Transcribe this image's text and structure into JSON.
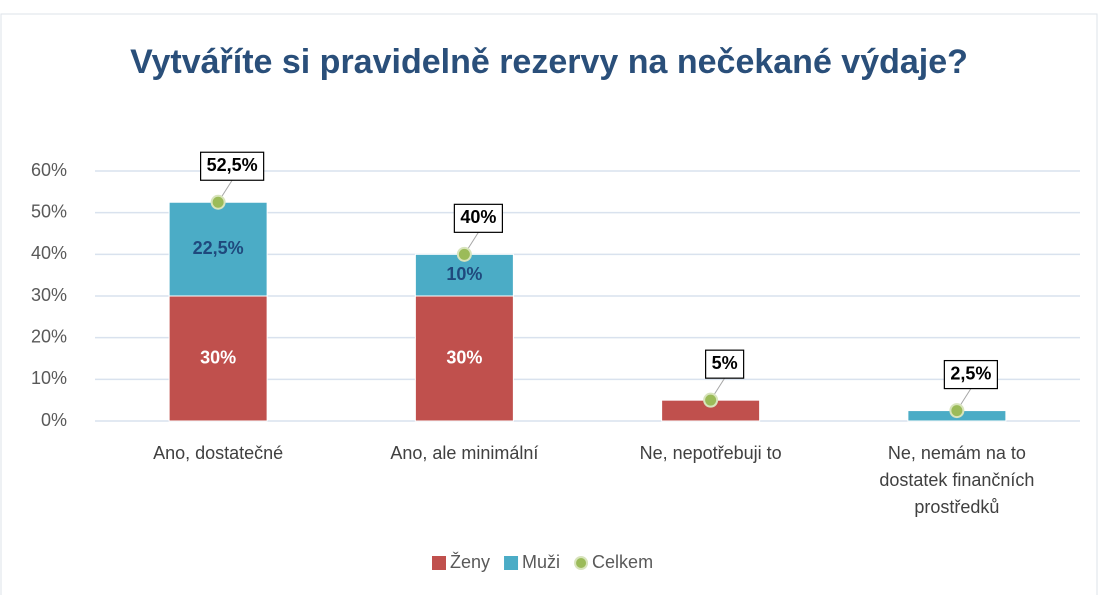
{
  "chart_data": {
    "type": "bar",
    "stacked": true,
    "title": "Vytváříte si pravidelně rezervy na nečekané výdaje?",
    "categories": [
      "Ano, dostatečné",
      "Ano, ale minimální",
      "Ne, nepotřebuji to",
      "Ne, nemám na to dostatek finančních prostředků"
    ],
    "series": [
      {
        "name": "Ženy",
        "color": "#c0504d",
        "values": [
          30,
          30,
          5,
          0
        ],
        "value_labels": [
          "30%",
          "30%",
          null,
          null
        ]
      },
      {
        "name": "Muži",
        "color": "#4bacc6",
        "values": [
          22.5,
          10,
          0,
          2.5
        ],
        "value_labels": [
          "22,5%",
          "10%",
          null,
          null
        ]
      },
      {
        "name": "Celkem",
        "type": "scatter",
        "color": "#9bbb59",
        "values": [
          52.5,
          40,
          5,
          2.5
        ],
        "value_labels": [
          "52,5%",
          "40%",
          "5%",
          "2,5%"
        ]
      }
    ],
    "ylim": [
      0,
      60
    ],
    "yticks": [
      {
        "value": 0,
        "label": "0%"
      },
      {
        "value": 10,
        "label": "10%"
      },
      {
        "value": 20,
        "label": "20%"
      },
      {
        "value": 30,
        "label": "30%"
      },
      {
        "value": 40,
        "label": "40%"
      },
      {
        "value": 50,
        "label": "50%"
      },
      {
        "value": 60,
        "label": "60%"
      }
    ],
    "grid": true,
    "legend": "bottom"
  }
}
